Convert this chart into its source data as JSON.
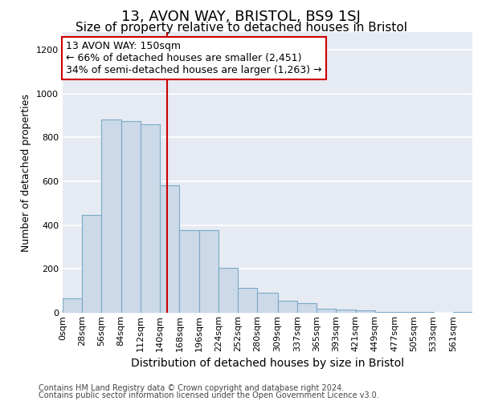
{
  "title_line1": "13, AVON WAY, BRISTOL, BS9 1SJ",
  "title_line2": "Size of property relative to detached houses in Bristol",
  "xlabel": "Distribution of detached houses by size in Bristol",
  "ylabel": "Number of detached properties",
  "annotation_line1": "13 AVON WAY: 150sqm",
  "annotation_line2": "← 66% of detached houses are smaller (2,451)",
  "annotation_line3": "34% of semi-detached houses are larger (1,263) →",
  "property_size": 150,
  "bin_starts": [
    0,
    28,
    56,
    84,
    112,
    140,
    168,
    196,
    224,
    252,
    280,
    309,
    337,
    365,
    393,
    421,
    449,
    477,
    505,
    533,
    561
  ],
  "bin_widths": [
    28,
    28,
    28,
    28,
    28,
    28,
    28,
    28,
    28,
    28,
    29,
    28,
    28,
    28,
    28,
    28,
    28,
    28,
    28,
    28,
    28
  ],
  "bar_heights": [
    65,
    445,
    880,
    875,
    860,
    580,
    375,
    375,
    205,
    115,
    90,
    55,
    45,
    20,
    15,
    10,
    5,
    5,
    2,
    1,
    3
  ],
  "bar_color": "#ccd9e8",
  "bar_edge_color": "#7aaac8",
  "background_color": "#e6eaf2",
  "grid_color": "#ffffff",
  "marker_line_color": "#cc0000",
  "annotation_box_edge": "#cc0000",
  "annotation_box_fill": "#ffffff",
  "ylim": [
    0,
    1280
  ],
  "xlim": [
    0,
    589
  ],
  "yticks": [
    0,
    200,
    400,
    600,
    800,
    1000,
    1200
  ],
  "xtick_labels": [
    "0sqm",
    "28sqm",
    "56sqm",
    "84sqm",
    "112sqm",
    "140sqm",
    "168sqm",
    "196sqm",
    "224sqm",
    "252sqm",
    "280sqm",
    "309sqm",
    "337sqm",
    "365sqm",
    "393sqm",
    "421sqm",
    "449sqm",
    "477sqm",
    "505sqm",
    "533sqm",
    "561sqm"
  ],
  "title1_fontsize": 13,
  "title2_fontsize": 11,
  "ylabel_fontsize": 9,
  "xlabel_fontsize": 10,
  "tick_fontsize": 8,
  "ann_fontsize": 9,
  "footer_fontsize": 7,
  "footer_line1": "Contains HM Land Registry data © Crown copyright and database right 2024.",
  "footer_line2": "Contains public sector information licensed under the Open Government Licence v3.0."
}
